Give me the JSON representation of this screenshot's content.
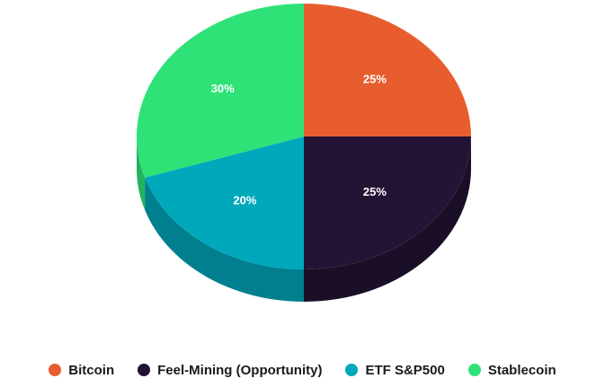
{
  "chart_data": {
    "type": "pie",
    "title": "",
    "legend_position": "bottom",
    "slices": [
      {
        "name": "Bitcoin",
        "value": 25,
        "label": "25%",
        "color": "#E85D2E",
        "side_color": "#B9481F"
      },
      {
        "name": "Feel-Mining (Opportunity)",
        "value": 25,
        "label": "25%",
        "color": "#231435",
        "side_color": "#1A0F27"
      },
      {
        "name": "ETF S&P500",
        "value": 20,
        "label": "20%",
        "color": "#00A8BC",
        "side_color": "#00808F"
      },
      {
        "name": "Stablecoin",
        "value": 30,
        "label": "30%",
        "color": "#2EE277",
        "side_color": "#22B35D"
      }
    ]
  }
}
